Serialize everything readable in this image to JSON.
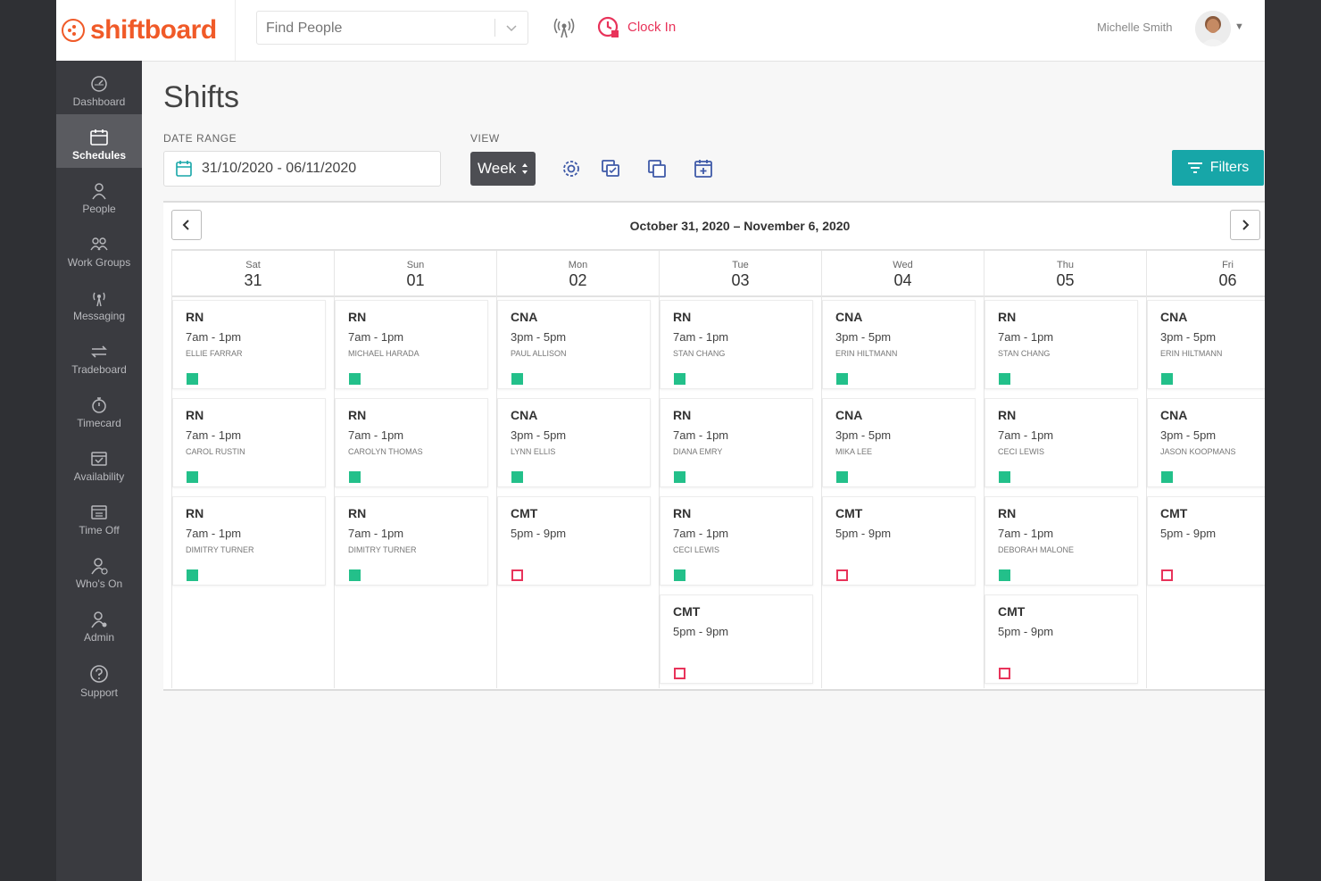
{
  "header": {
    "brand": "shiftboard",
    "search_placeholder": "Find People",
    "clock_in_label": "Clock In",
    "user_name": "Michelle Smith"
  },
  "sidebar": {
    "items": [
      {
        "label": "Dashboard",
        "icon": "dashboard-icon"
      },
      {
        "label": "Schedules",
        "icon": "calendar-icon",
        "active": true
      },
      {
        "label": "People",
        "icon": "person-icon"
      },
      {
        "label": "Work Groups",
        "icon": "group-icon"
      },
      {
        "label": "Messaging",
        "icon": "broadcast-icon"
      },
      {
        "label": "Tradeboard",
        "icon": "swap-icon"
      },
      {
        "label": "Timecard",
        "icon": "stopwatch-icon"
      },
      {
        "label": "Availability",
        "icon": "calendar-check-icon"
      },
      {
        "label": "Time Off",
        "icon": "calendar-off-icon"
      },
      {
        "label": "Who's On",
        "icon": "person-clock-icon"
      },
      {
        "label": "Admin",
        "icon": "person-gear-icon"
      },
      {
        "label": "Support",
        "icon": "help-icon"
      }
    ]
  },
  "page": {
    "title": "Shifts",
    "date_range_label": "DATE RANGE",
    "date_range_value": "31/10/2020 - 06/11/2020",
    "view_label": "VIEW",
    "view_value": "Week",
    "filters_label": "Filters"
  },
  "calendar": {
    "range_title": "October 31, 2020 – November 6, 2020",
    "days": [
      {
        "dow": "Sat",
        "num": "31",
        "shifts": [
          {
            "role": "RN",
            "time": "7am - 1pm",
            "who": "ELLIE FARRAR",
            "status": "filled"
          },
          {
            "role": "RN",
            "time": "7am - 1pm",
            "who": "CAROL RUSTIN",
            "status": "filled"
          },
          {
            "role": "RN",
            "time": "7am - 1pm",
            "who": "DIMITRY TURNER",
            "status": "filled"
          }
        ]
      },
      {
        "dow": "Sun",
        "num": "01",
        "shifts": [
          {
            "role": "RN",
            "time": "7am - 1pm",
            "who": "MICHAEL HARADA",
            "status": "filled"
          },
          {
            "role": "RN",
            "time": "7am - 1pm",
            "who": "CAROLYN THOMAS",
            "status": "filled"
          },
          {
            "role": "RN",
            "time": "7am - 1pm",
            "who": "DIMITRY TURNER",
            "status": "filled"
          }
        ]
      },
      {
        "dow": "Mon",
        "num": "02",
        "shifts": [
          {
            "role": "CNA",
            "time": "3pm - 5pm",
            "who": "PAUL ALLISON",
            "status": "filled"
          },
          {
            "role": "CNA",
            "time": "3pm - 5pm",
            "who": "LYNN ELLIS",
            "status": "filled"
          },
          {
            "role": "CMT",
            "time": "5pm - 9pm",
            "who": "",
            "status": "open"
          }
        ]
      },
      {
        "dow": "Tue",
        "num": "03",
        "shifts": [
          {
            "role": "RN",
            "time": "7am - 1pm",
            "who": "STAN CHANG",
            "status": "filled"
          },
          {
            "role": "RN",
            "time": "7am - 1pm",
            "who": "DIANA EMRY",
            "status": "filled"
          },
          {
            "role": "RN",
            "time": "7am - 1pm",
            "who": "CECI LEWIS",
            "status": "filled"
          },
          {
            "role": "CMT",
            "time": "5pm - 9pm",
            "who": "",
            "status": "open"
          }
        ]
      },
      {
        "dow": "Wed",
        "num": "04",
        "shifts": [
          {
            "role": "CNA",
            "time": "3pm - 5pm",
            "who": "ERIN HILTMANN",
            "status": "filled"
          },
          {
            "role": "CNA",
            "time": "3pm - 5pm",
            "who": "MIKA LEE",
            "status": "filled"
          },
          {
            "role": "CMT",
            "time": "5pm - 9pm",
            "who": "",
            "status": "open"
          }
        ]
      },
      {
        "dow": "Thu",
        "num": "05",
        "shifts": [
          {
            "role": "RN",
            "time": "7am - 1pm",
            "who": "STAN CHANG",
            "status": "filled"
          },
          {
            "role": "RN",
            "time": "7am - 1pm",
            "who": "CECI LEWIS",
            "status": "filled"
          },
          {
            "role": "RN",
            "time": "7am - 1pm",
            "who": "DEBORAH MALONE",
            "status": "filled"
          },
          {
            "role": "CMT",
            "time": "5pm - 9pm",
            "who": "",
            "status": "open"
          }
        ]
      },
      {
        "dow": "Fri",
        "num": "06",
        "shifts": [
          {
            "role": "CNA",
            "time": "3pm - 5pm",
            "who": "ERIN HILTMANN",
            "status": "filled"
          },
          {
            "role": "CNA",
            "time": "3pm - 5pm",
            "who": "JASON KOOPMANS",
            "status": "filled"
          },
          {
            "role": "CMT",
            "time": "5pm - 9pm",
            "who": "",
            "status": "open"
          }
        ]
      }
    ]
  },
  "colors": {
    "brand": "#f05a28",
    "accent": "#17a6a8",
    "filled": "#23c08a",
    "open": "#e8335a"
  }
}
